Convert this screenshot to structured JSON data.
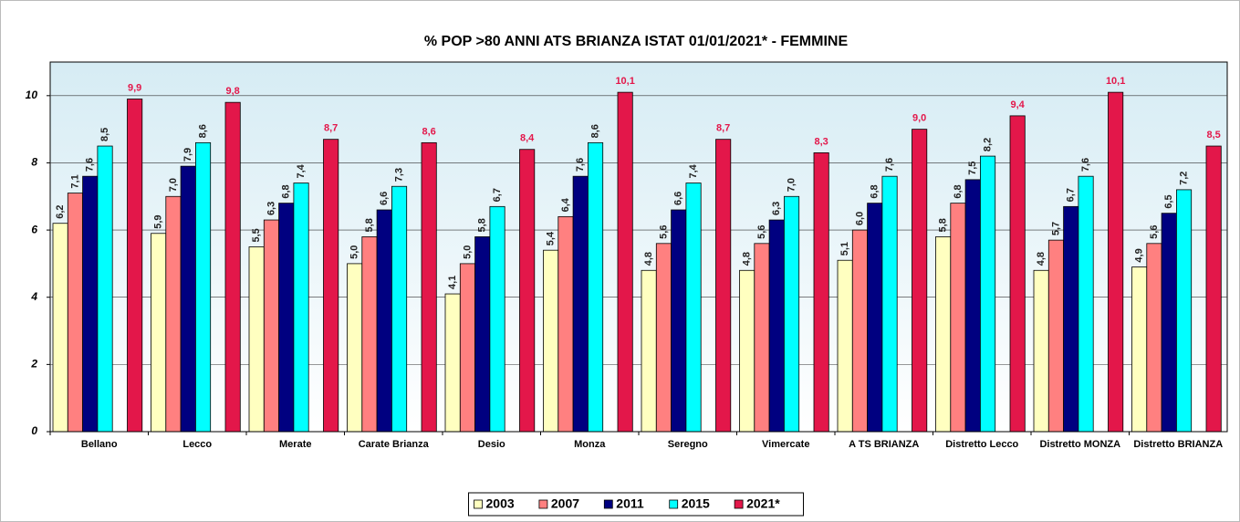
{
  "chart_data": {
    "type": "bar",
    "title": "% POP >80 ANNI ATS BRIANZA ISTAT 01/01/2021* -  FEMMINE",
    "categories": [
      "Bellano",
      "Lecco",
      "Merate",
      "Carate Brianza",
      "Desio",
      "Monza",
      "Seregno",
      "Vimercate",
      "A TS BRIANZA",
      "Distretto Lecco",
      "Distretto MONZA",
      "Distretto BRIANZA"
    ],
    "series": [
      {
        "name": "2003",
        "color": "#ffffc0",
        "values": [
          6.2,
          5.9,
          5.5,
          5.0,
          4.1,
          5.4,
          4.8,
          4.8,
          5.1,
          5.8,
          4.8,
          4.9
        ],
        "value_labels": [
          "6,2",
          "5,9",
          "5,5",
          "5,0",
          "4,1",
          "5,4",
          "4,8",
          "4,8",
          "5,1",
          "5,8",
          "4,8",
          "4,9"
        ]
      },
      {
        "name": "2007",
        "color": "#ff8080",
        "values": [
          7.1,
          7.0,
          6.3,
          5.8,
          5.0,
          6.4,
          5.6,
          5.6,
          6.0,
          6.8,
          5.7,
          5.6
        ],
        "value_labels": [
          "7,1",
          "7,0",
          "6,3",
          "5,8",
          "5,0",
          "6,4",
          "5,6",
          "5,6",
          "6,0",
          "6,8",
          "5,7",
          "5,6"
        ]
      },
      {
        "name": "2011",
        "color": "#000080",
        "values": [
          7.6,
          7.9,
          6.8,
          6.6,
          5.8,
          7.6,
          6.6,
          6.3,
          6.8,
          7.5,
          6.7,
          6.5
        ],
        "value_labels": [
          "7,6",
          "7,9",
          "6,8",
          "6,6",
          "5,8",
          "7,6",
          "6,6",
          "6,3",
          "6,8",
          "7,5",
          "6,7",
          "6,5"
        ]
      },
      {
        "name": "2015",
        "color": "#00ffff",
        "values": [
          8.5,
          8.6,
          7.4,
          7.3,
          6.7,
          8.6,
          7.4,
          7.0,
          7.6,
          8.2,
          7.6,
          7.2
        ],
        "value_labels": [
          "8,5",
          "8,6",
          "7,4",
          "7,3",
          "6,7",
          "8,6",
          "7,4",
          "7,0",
          "7,6",
          "8,2",
          "7,6",
          "7,2"
        ]
      },
      {
        "name": "2021*",
        "color": "#e3174a",
        "values": [
          9.9,
          9.8,
          8.7,
          8.6,
          8.4,
          10.1,
          8.7,
          8.3,
          9.0,
          9.4,
          10.1,
          8.5
        ],
        "value_labels": [
          "9,9",
          "9,8",
          "8,7",
          "8,6",
          "8,4",
          "10,1",
          "8,7",
          "8,3",
          "9,0",
          "9,4",
          "10,1",
          "8,5"
        ]
      }
    ],
    "ylim": [
      0,
      11
    ],
    "yticks": [
      0,
      2,
      4,
      6,
      8,
      10
    ],
    "grid": true,
    "legend": "bottom"
  }
}
